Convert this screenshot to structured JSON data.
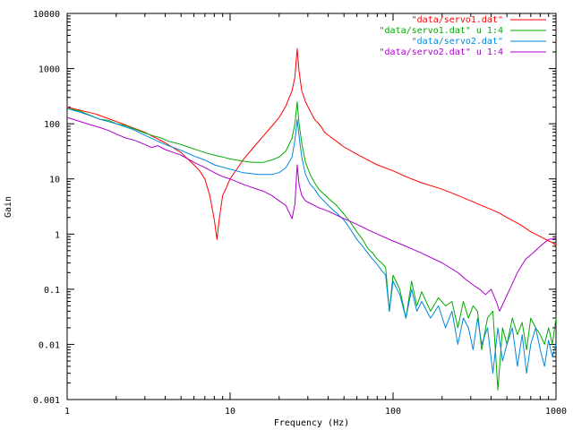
{
  "chart_data": {
    "type": "line",
    "title": "",
    "xlabel": "Frequency (Hz)",
    "ylabel": "Gain",
    "x_scale": "log",
    "y_scale": "log",
    "xlim": [
      1,
      1000
    ],
    "ylim": [
      0.001,
      10000
    ],
    "grid": false,
    "legend_position": "top-right",
    "x_ticks": [
      {
        "value": 1,
        "label": "1"
      },
      {
        "value": 10,
        "label": "10"
      },
      {
        "value": 100,
        "label": "100"
      },
      {
        "value": 1000,
        "label": "1000"
      }
    ],
    "y_ticks": [
      {
        "value": 0.001,
        "label": "0.001"
      },
      {
        "value": 0.01,
        "label": "0.01"
      },
      {
        "value": 0.1,
        "label": "0.1"
      },
      {
        "value": 1,
        "label": "1"
      },
      {
        "value": 10,
        "label": "10"
      },
      {
        "value": 100,
        "label": "100"
      },
      {
        "value": 1000,
        "label": "1000"
      },
      {
        "value": 10000,
        "label": "10000"
      }
    ],
    "series": [
      {
        "name": "\"data/servo1.dat\"",
        "color": "#ff0000",
        "x": [
          1,
          1.5,
          2,
          3,
          4,
          5,
          6,
          6.5,
          7,
          7.5,
          8,
          8.3,
          8.6,
          9,
          9.5,
          10,
          11,
          12,
          14,
          16,
          18,
          20,
          22,
          24,
          25,
          25.8,
          26.5,
          27.5,
          29,
          31,
          33,
          35,
          37,
          38,
          40,
          45,
          50,
          60,
          70,
          80,
          100,
          120,
          150,
          200,
          250,
          300,
          350,
          400,
          450,
          500,
          600,
          700,
          800,
          850,
          900,
          950,
          1000
        ],
        "y": [
          200,
          150,
          110,
          70,
          45,
          30,
          18,
          14,
          10,
          5,
          1.8,
          0.8,
          2,
          5,
          7,
          10,
          15,
          22,
          38,
          60,
          90,
          130,
          210,
          400,
          700,
          2300,
          900,
          400,
          250,
          170,
          120,
          100,
          80,
          70,
          62,
          48,
          38,
          28,
          22,
          18,
          14,
          11,
          8.5,
          6.5,
          5,
          4,
          3.3,
          2.8,
          2.4,
          2,
          1.5,
          1.1,
          0.9,
          0.82,
          0.75,
          0.7,
          0.62
        ]
      },
      {
        "name": "\"data/servo1.dat\" u 1:4",
        "color": "#00aa00",
        "x": [
          1,
          1.2,
          1.4,
          1.6,
          1.8,
          2,
          2.3,
          2.6,
          3,
          3.4,
          3.8,
          4.2,
          4.6,
          5,
          5.5,
          6,
          7,
          8,
          9,
          10,
          12,
          14,
          16,
          18,
          20,
          22,
          24,
          25,
          25.8,
          26.5,
          27.5,
          29,
          31,
          33,
          35,
          40,
          45,
          50,
          55,
          60,
          65,
          70,
          75,
          80,
          85,
          90,
          95,
          100,
          110,
          120,
          130,
          140,
          150,
          170,
          190,
          210,
          230,
          250,
          270,
          290,
          310,
          330,
          350,
          380,
          410,
          440,
          470,
          500,
          540,
          580,
          620,
          660,
          700,
          750,
          800,
          850,
          900,
          950,
          1000
        ],
        "y": [
          190,
          170,
          140,
          120,
          115,
          100,
          92,
          80,
          68,
          60,
          55,
          48,
          45,
          42,
          38,
          35,
          30,
          27,
          25,
          23,
          21,
          20,
          20,
          22,
          25,
          32,
          55,
          100,
          250,
          100,
          45,
          20,
          12,
          8.5,
          6.5,
          4.5,
          3.3,
          2.3,
          1.6,
          1.1,
          0.8,
          0.55,
          0.45,
          0.35,
          0.3,
          0.25,
          0.04,
          0.18,
          0.1,
          0.03,
          0.14,
          0.05,
          0.09,
          0.04,
          0.07,
          0.05,
          0.06,
          0.02,
          0.06,
          0.03,
          0.05,
          0.04,
          0.008,
          0.03,
          0.04,
          0.0015,
          0.02,
          0.01,
          0.03,
          0.015,
          0.025,
          0.008,
          0.03,
          0.02,
          0.015,
          0.01,
          0.02,
          0.01,
          0.03
        ]
      },
      {
        "name": "\"data/servo2.dat\"",
        "color": "#0088dd",
        "x": [
          1,
          1.3,
          1.6,
          2,
          2.5,
          3,
          3.5,
          4,
          5,
          6,
          7,
          8,
          10,
          12,
          15,
          18,
          20,
          22,
          24,
          25,
          25.8,
          26.5,
          27.5,
          29,
          31,
          33,
          35,
          40,
          45,
          50,
          55,
          60,
          65,
          70,
          75,
          80,
          85,
          90,
          95,
          100,
          110,
          120,
          130,
          140,
          150,
          170,
          190,
          210,
          230,
          250,
          270,
          290,
          310,
          330,
          350,
          380,
          410,
          440,
          470,
          500,
          540,
          580,
          620,
          660,
          700,
          750,
          800,
          850,
          900,
          950,
          1000
        ],
        "y": [
          190,
          150,
          120,
          100,
          80,
          62,
          50,
          42,
          33,
          26,
          22,
          18,
          15,
          13,
          12,
          12,
          13,
          16,
          25,
          50,
          120,
          60,
          25,
          12,
          8,
          6.5,
          5,
          3.3,
          2.4,
          1.8,
          1.2,
          0.8,
          0.6,
          0.45,
          0.35,
          0.28,
          0.22,
          0.18,
          0.04,
          0.14,
          0.08,
          0.03,
          0.1,
          0.04,
          0.06,
          0.03,
          0.05,
          0.02,
          0.04,
          0.01,
          0.03,
          0.02,
          0.008,
          0.03,
          0.01,
          0.02,
          0.003,
          0.02,
          0.005,
          0.01,
          0.02,
          0.004,
          0.015,
          0.003,
          0.01,
          0.02,
          0.008,
          0.004,
          0.012,
          0.006,
          0.01
        ]
      },
      {
        "name": "\"data/servo2.dat\" u 1:4",
        "color": "#aa00cc",
        "x": [
          1,
          1.2,
          1.4,
          1.6,
          1.8,
          2,
          2.3,
          2.6,
          3,
          3.3,
          3.6,
          4,
          4.5,
          5,
          6,
          7,
          8,
          9,
          10,
          12,
          14,
          16,
          18,
          20,
          22,
          23,
          24,
          25,
          25.8,
          26.5,
          27.5,
          29,
          31,
          33,
          35,
          40,
          45,
          50,
          60,
          70,
          80,
          100,
          120,
          150,
          200,
          250,
          280,
          310,
          340,
          370,
          400,
          430,
          450,
          480,
          520,
          580,
          650,
          720,
          800,
          850,
          900,
          950,
          1000
        ],
        "y": [
          130,
          110,
          95,
          85,
          75,
          65,
          55,
          50,
          42,
          37,
          40,
          34,
          30,
          27,
          20,
          16,
          13,
          11,
          10,
          8,
          6.8,
          6,
          5,
          4,
          3.3,
          2.5,
          1.9,
          3.5,
          18,
          8,
          5,
          4,
          3.6,
          3.3,
          3,
          2.6,
          2.2,
          1.9,
          1.5,
          1.2,
          1,
          0.75,
          0.6,
          0.45,
          0.3,
          0.2,
          0.15,
          0.12,
          0.1,
          0.08,
          0.1,
          0.06,
          0.04,
          0.06,
          0.1,
          0.2,
          0.35,
          0.45,
          0.6,
          0.7,
          0.8,
          0.82,
          0.85
        ]
      }
    ]
  }
}
